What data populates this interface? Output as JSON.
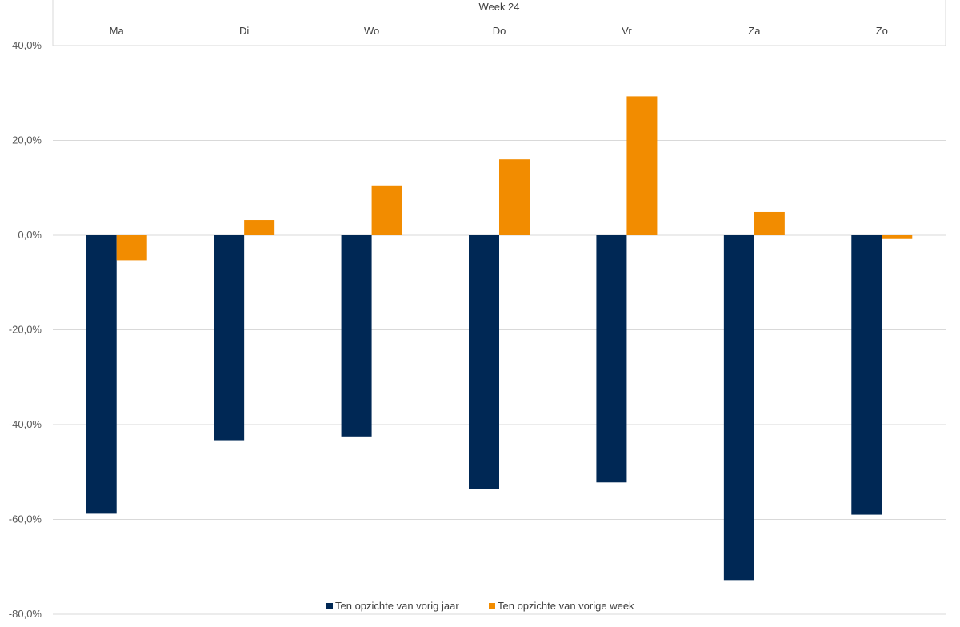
{
  "chart_data": {
    "type": "bar",
    "group_label": "Week 24",
    "categories": [
      "Ma",
      "Di",
      "Wo",
      "Do",
      "Vr",
      "Za",
      "Zo"
    ],
    "series": [
      {
        "name": "Ten opzichte van vorig jaar",
        "color": "#002855",
        "values": [
          -58.8,
          -43.3,
          -42.5,
          -53.6,
          -52.2,
          -72.8,
          -59.0
        ]
      },
      {
        "name": "Ten opzichte van vorige week",
        "color": "#F28C00",
        "values": [
          -5.3,
          3.2,
          10.5,
          16.0,
          29.3,
          4.9,
          -0.8
        ]
      }
    ],
    "ylim": [
      -80,
      40
    ],
    "yticks": [
      -80,
      -60,
      -40,
      -20,
      0,
      20,
      40
    ],
    "ytick_labels": [
      "-80,0%",
      "-60,0%",
      "-40,0%",
      "-20,0%",
      "0,0%",
      "20,0%",
      "40,0%"
    ],
    "grid": true,
    "legend_position": "bottom"
  }
}
